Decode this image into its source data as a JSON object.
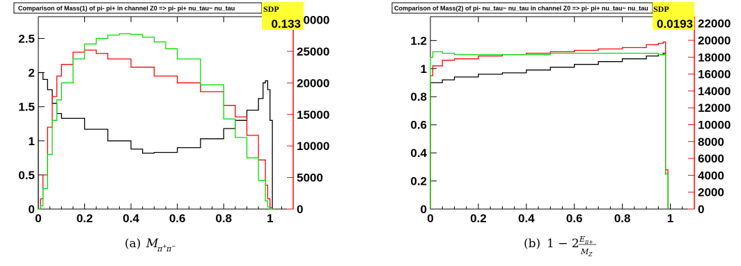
{
  "chart_data": [
    {
      "type": "line",
      "title": "Comparison of Mass(1) of pi- pi+ in channel Z0 => pi- pi+ nu_tau~ nu_tau",
      "sdp_label": "SDP",
      "sdp_value": "0.133",
      "caption_tag": "(a)",
      "caption_expr": "M_{π+π−}",
      "xlim": [
        0,
        1.1
      ],
      "ylim_left": [
        0,
        2.82
      ],
      "ylim_right": [
        0,
        30500
      ],
      "x_ticks": [
        "0",
        "0.2",
        "0.4",
        "0.6",
        "0.8",
        "1"
      ],
      "y_ticks_left": [
        "0",
        "0.5",
        "1",
        "1.5",
        "2",
        "2.5"
      ],
      "y_ticks_right": [
        "0",
        "5000",
        "10000",
        "15000",
        "20000",
        "25000",
        "30000"
      ],
      "grid": false,
      "series": [
        {
          "color": "#000000",
          "axis": "left",
          "x": [
            0,
            0.01,
            0.02,
            0.04,
            0.06,
            0.08,
            0.1,
            0.2,
            0.3,
            0.4,
            0.45,
            0.5,
            0.6,
            0.7,
            0.8,
            0.85,
            0.9,
            0.95,
            0.97,
            0.98,
            0.99,
            1.0,
            1.01,
            1.02
          ],
          "y": [
            2.0,
            2.0,
            1.9,
            1.75,
            1.55,
            1.4,
            1.33,
            1.17,
            1.0,
            0.88,
            0.82,
            0.83,
            0.9,
            1.03,
            1.18,
            1.3,
            1.45,
            1.62,
            1.85,
            1.88,
            1.75,
            1.3,
            0.0,
            0.0
          ]
        },
        {
          "color": "#ff0000",
          "axis": "left",
          "x": [
            0,
            0.01,
            0.02,
            0.04,
            0.06,
            0.08,
            0.1,
            0.15,
            0.2,
            0.25,
            0.3,
            0.4,
            0.5,
            0.6,
            0.7,
            0.8,
            0.85,
            0.9,
            0.95,
            0.98,
            0.99,
            1.0,
            1.01,
            1.02
          ],
          "y": [
            0.0,
            0.15,
            0.5,
            1.2,
            1.65,
            1.95,
            2.12,
            2.3,
            2.33,
            2.28,
            2.2,
            2.08,
            1.95,
            1.85,
            1.72,
            1.52,
            1.35,
            1.08,
            0.72,
            0.35,
            0.15,
            0.02,
            0.0,
            0.0
          ]
        },
        {
          "color": "#00dd00",
          "axis": "left",
          "x": [
            0,
            0.01,
            0.02,
            0.04,
            0.06,
            0.08,
            0.1,
            0.15,
            0.2,
            0.25,
            0.3,
            0.35,
            0.4,
            0.45,
            0.5,
            0.55,
            0.6,
            0.7,
            0.8,
            0.85,
            0.9,
            0.95,
            0.98,
            0.99,
            1.0,
            1.01,
            1.02
          ],
          "y": [
            0.0,
            0.05,
            0.3,
            0.8,
            1.3,
            1.6,
            1.85,
            2.2,
            2.42,
            2.5,
            2.55,
            2.57,
            2.56,
            2.52,
            2.45,
            2.35,
            2.2,
            1.82,
            1.32,
            1.05,
            0.75,
            0.42,
            0.12,
            0.03,
            0.0,
            0.0,
            0.0
          ]
        }
      ]
    },
    {
      "type": "line",
      "title": "Comparison of Mass(2) of pi- nu_tau~ nu_tau in channel Z0 => pi- pi+ nu_tau~ nu_tau",
      "sdp_label": "SDP",
      "sdp_value": "0.0193",
      "caption_tag": "(b)",
      "caption_expr": "1 − 2 E_{π+} / M_Z",
      "xlim": [
        0,
        1.1
      ],
      "ylim_left": [
        0,
        1.37
      ],
      "ylim_right": [
        0,
        22800
      ],
      "x_ticks": [
        "0",
        "0.2",
        "0.4",
        "0.6",
        "0.8",
        "1"
      ],
      "y_ticks_left": [
        "0",
        "0.2",
        "0.4",
        "0.6",
        "0.8",
        "1",
        "1.2"
      ],
      "y_ticks_right": [
        "0",
        "2000",
        "4000",
        "6000",
        "8000",
        "10000",
        "12000",
        "14000",
        "16000",
        "18000",
        "20000",
        "22000"
      ],
      "grid": false,
      "series": [
        {
          "color": "#000000",
          "axis": "left",
          "x": [
            0,
            0.05,
            0.1,
            0.2,
            0.3,
            0.4,
            0.5,
            0.6,
            0.7,
            0.8,
            0.9,
            0.95,
            0.97,
            0.98,
            0.99
          ],
          "y": [
            0.9,
            0.92,
            0.94,
            0.96,
            0.97,
            0.99,
            1.01,
            1.03,
            1.05,
            1.07,
            1.09,
            1.1,
            1.11,
            0.25,
            0.0
          ]
        },
        {
          "color": "#ff0000",
          "axis": "left",
          "x": [
            0,
            0.01,
            0.05,
            0.1,
            0.2,
            0.3,
            0.4,
            0.5,
            0.6,
            0.7,
            0.8,
            0.9,
            0.95,
            0.97,
            0.98,
            0.99
          ],
          "y": [
            0.95,
            1.02,
            1.06,
            1.07,
            1.09,
            1.1,
            1.11,
            1.12,
            1.13,
            1.14,
            1.15,
            1.17,
            1.18,
            1.19,
            0.28,
            0.0
          ]
        },
        {
          "color": "#00dd00",
          "axis": "left",
          "x": [
            0,
            0.01,
            0.05,
            0.1,
            0.2,
            0.3,
            0.4,
            0.5,
            0.6,
            0.7,
            0.8,
            0.9,
            0.95,
            0.97,
            0.98,
            0.99
          ],
          "y": [
            1.08,
            1.12,
            1.11,
            1.1,
            1.1,
            1.1,
            1.1,
            1.11,
            1.11,
            1.11,
            1.11,
            1.11,
            1.1,
            1.1,
            0.25,
            0.0
          ]
        }
      ]
    }
  ]
}
